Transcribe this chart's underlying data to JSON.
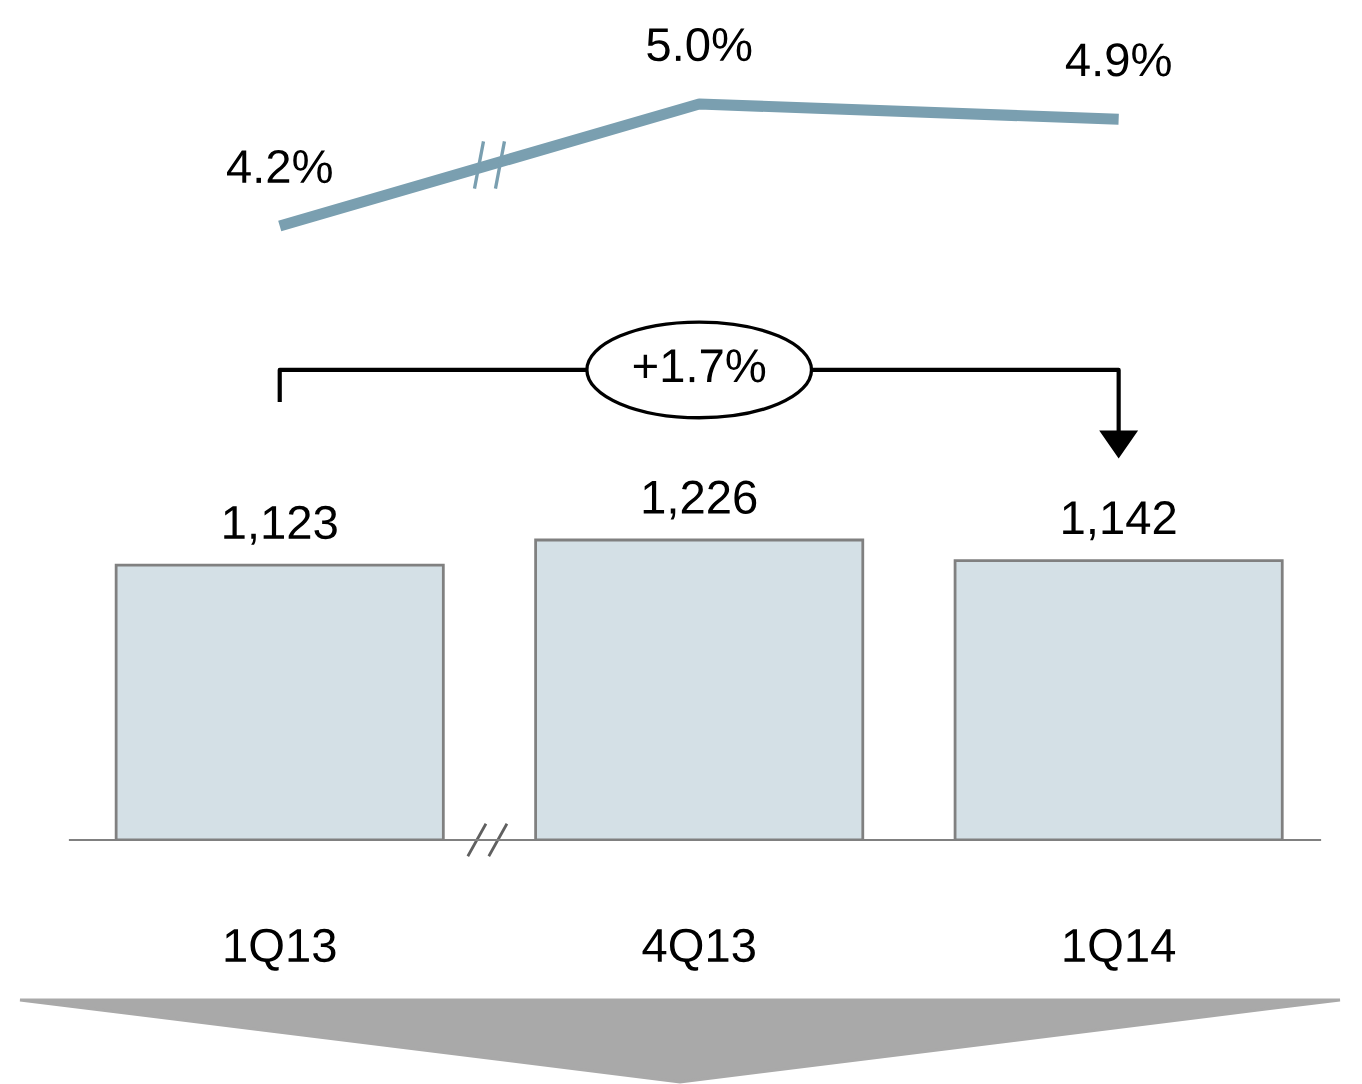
{
  "chart_data": [
    {
      "type": "line",
      "categories": [
        null,
        null,
        null
      ],
      "tick_labels": false,
      "marker": "none",
      "series": [
        {
          "color": "#7a9fb0",
          "values": [
            4.2,
            5.0,
            4.9
          ],
          "value_labels": [
            "4.2%",
            "5.0%",
            "4.9%"
          ]
        }
      ]
    },
    {
      "type": "bar",
      "categories": [
        "1Q13",
        "4Q13",
        "1Q14"
      ],
      "tick_labels": "x",
      "annotations": [
        "+1.7%"
      ],
      "series": [
        {
          "color": "#d4e0e6",
          "values": [
            1123,
            1226,
            1142
          ],
          "value_labels": [
            "1,123",
            "1,226",
            "1,142"
          ]
        }
      ]
    }
  ]
}
